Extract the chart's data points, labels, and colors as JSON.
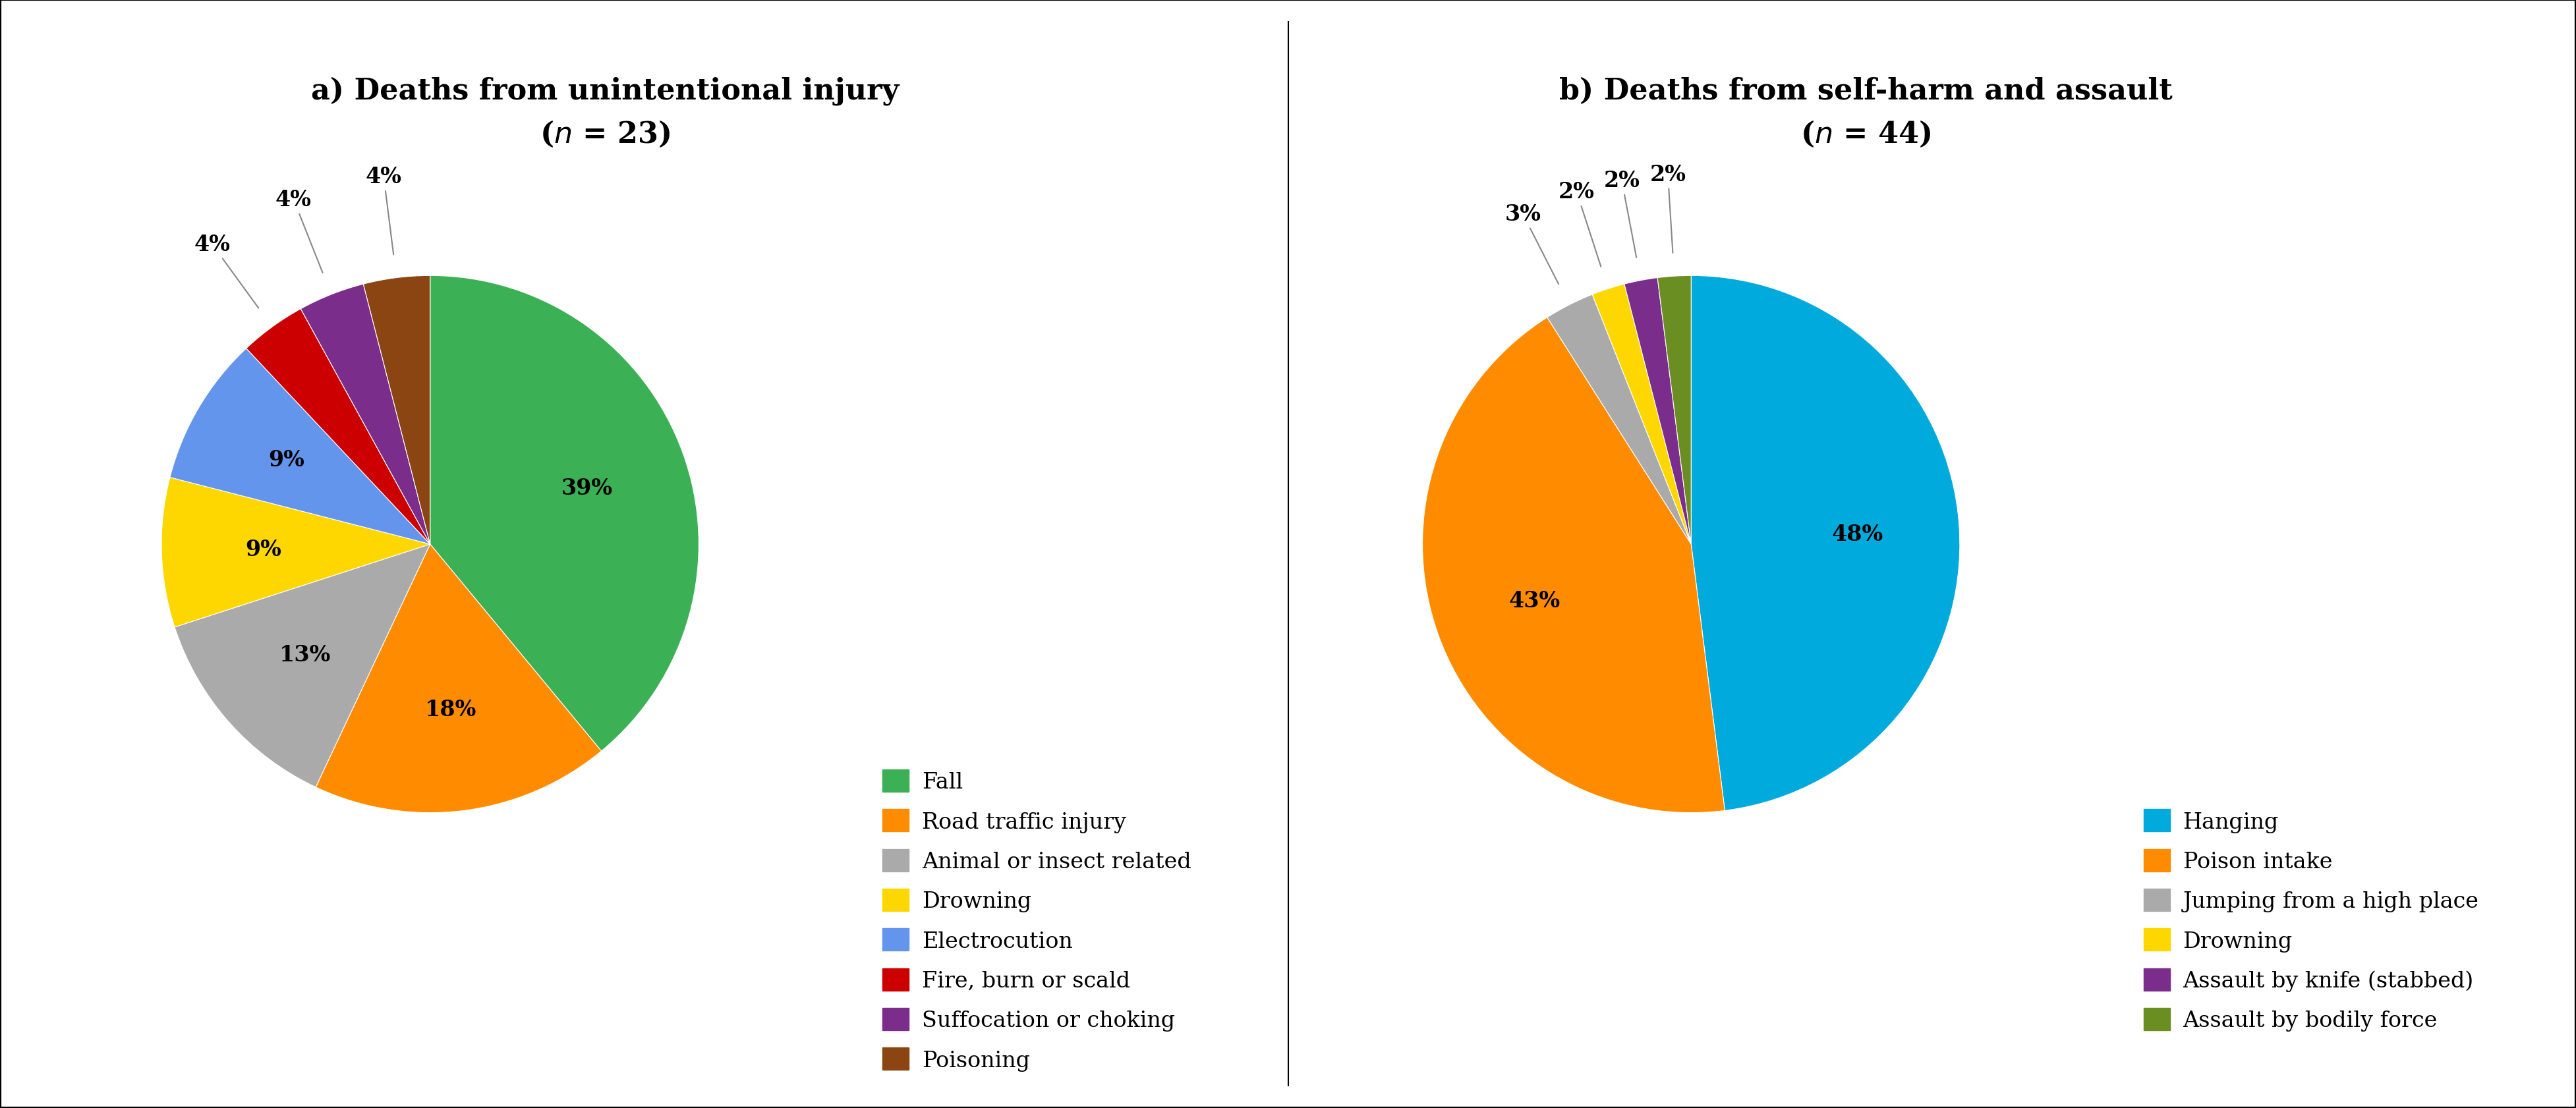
{
  "chart_a": {
    "title_line1": "a) Deaths from unintentional injury",
    "title_line2": "(n = 23)",
    "labels": [
      "Fall",
      "Road traffic injury",
      "Animal or insect related",
      "Drowning",
      "Electrocution",
      "Fire, burn or scald",
      "Suffocation or choking",
      "Poisoning"
    ],
    "values": [
      39,
      18,
      13,
      9,
      9,
      4,
      4,
      4
    ],
    "colors": [
      "#3CB054",
      "#FF8C00",
      "#AAAAAA",
      "#FFD700",
      "#6495ED",
      "#CC0000",
      "#7B2D8B",
      "#8B4513"
    ],
    "pct_labels": [
      "39%",
      "18%",
      "13%",
      "9%",
      "9%",
      "4%",
      "4%",
      "4%"
    ],
    "pct_outside": [
      false,
      false,
      false,
      false,
      false,
      true,
      true,
      true
    ]
  },
  "chart_b": {
    "title_line1": "b) Deaths from self-harm and assault",
    "title_line2": "(n = 44)",
    "labels": [
      "Hanging",
      "Poison intake",
      "Jumping from a high place",
      "Drowning",
      "Assault by knife (stabbed)",
      "Assault by bodily force"
    ],
    "values": [
      48,
      43,
      3,
      2,
      2,
      2
    ],
    "colors": [
      "#00AADD",
      "#FF8C00",
      "#AAAAAA",
      "#FFD700",
      "#7B2D8B",
      "#6B8E23"
    ],
    "pct_labels": [
      "48%",
      "43%",
      "3%",
      "2%",
      "2%",
      "2%"
    ],
    "pct_outside": [
      false,
      false,
      true,
      true,
      true,
      true
    ]
  },
  "title_fontsize": 32,
  "pct_fontsize": 24,
  "legend_fontsize": 24,
  "background_color": "#FFFFFF"
}
